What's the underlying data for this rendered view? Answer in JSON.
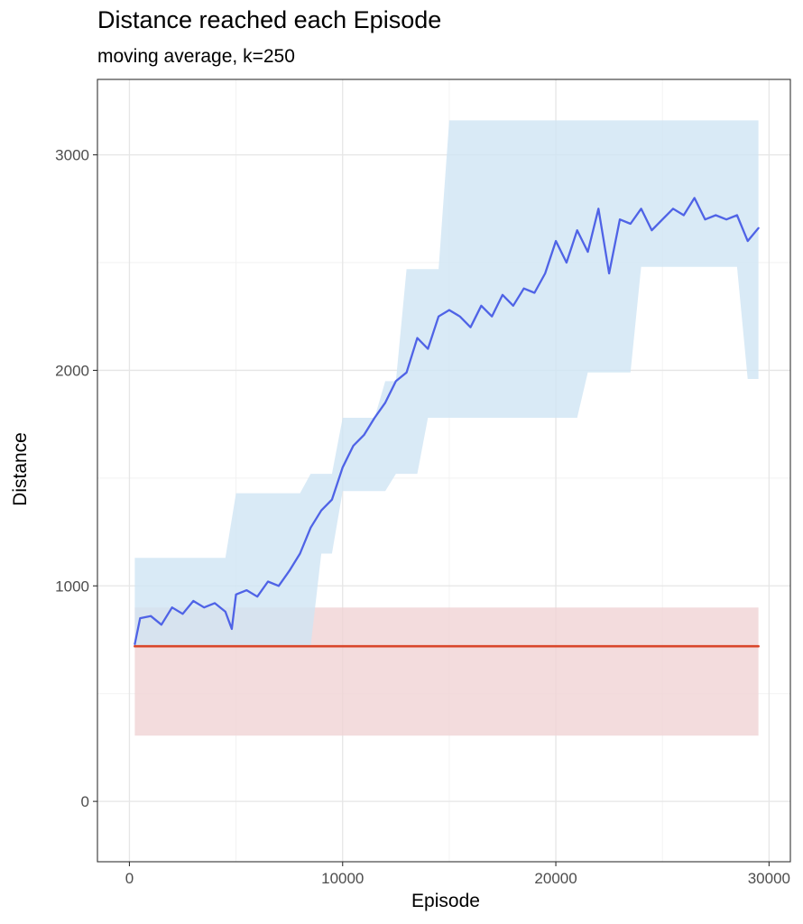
{
  "chart_data": {
    "type": "line",
    "title": "Distance reached each Episode",
    "subtitle": "moving average, k=250",
    "xlabel": "Episode",
    "ylabel": "Distance",
    "xlim": [
      -1500,
      31000
    ],
    "ylim": [
      -280,
      3350
    ],
    "x_ticks": [
      0,
      10000,
      20000,
      30000
    ],
    "x_tick_labels": [
      "0",
      "10000",
      "20000",
      "30000"
    ],
    "y_ticks": [
      0,
      1000,
      2000,
      3000
    ],
    "y_tick_labels": [
      "0",
      "1000",
      "2000",
      "3000"
    ],
    "grid": true,
    "colors": {
      "agent_line": "#4f63e6",
      "agent_band": "#cfe5f4",
      "baseline_line": "#d9472b",
      "baseline_band": "#f0d3d4",
      "panel_border": "#333333",
      "grid_major": "#e6e6e6",
      "grid_minor": "#f2f2f2"
    },
    "series": [
      {
        "role": "agent_moving_average",
        "x": [
          250,
          500,
          1000,
          1500,
          2000,
          2500,
          3000,
          3500,
          4000,
          4500,
          4800,
          5000,
          5500,
          6000,
          6500,
          7000,
          7500,
          8000,
          8500,
          9000,
          9500,
          10000,
          10500,
          11000,
          11500,
          12000,
          12500,
          13000,
          13500,
          14000,
          14500,
          15000,
          15500,
          16000,
          16500,
          17000,
          17500,
          18000,
          18500,
          19000,
          19500,
          20000,
          20500,
          21000,
          21500,
          22000,
          22500,
          23000,
          23500,
          24000,
          24500,
          25000,
          25500,
          26000,
          26500,
          27000,
          27500,
          28000,
          28500,
          29000,
          29500
        ],
        "y": [
          730,
          850,
          860,
          820,
          900,
          870,
          930,
          900,
          920,
          880,
          800,
          960,
          980,
          950,
          1020,
          1000,
          1070,
          1150,
          1270,
          1350,
          1400,
          1550,
          1650,
          1700,
          1780,
          1850,
          1950,
          1990,
          2150,
          2100,
          2250,
          2280,
          2250,
          2200,
          2300,
          2250,
          2350,
          2300,
          2380,
          2360,
          2450,
          2600,
          2500,
          2650,
          2550,
          2750,
          2450,
          2700,
          2680,
          2750,
          2650,
          2700,
          2750,
          2720,
          2800,
          2700,
          2720,
          2700,
          2720,
          2600,
          2660
        ]
      },
      {
        "role": "agent_range_band",
        "x": [
          250,
          500,
          1000,
          1500,
          2000,
          2500,
          3000,
          3500,
          4000,
          4500,
          5000,
          5500,
          6000,
          6500,
          7000,
          7500,
          8000,
          8500,
          9000,
          9500,
          10000,
          10500,
          11000,
          11500,
          12000,
          12500,
          13000,
          13500,
          14000,
          14500,
          15000,
          15500,
          16000,
          16500,
          17000,
          17500,
          18000,
          18500,
          19000,
          19500,
          20000,
          20500,
          21000,
          21500,
          22000,
          22500,
          23000,
          23500,
          24000,
          24500,
          25000,
          25500,
          26000,
          26500,
          27000,
          27500,
          28000,
          28500,
          29000,
          29500
        ],
        "ymin": [
          720,
          720,
          720,
          720,
          720,
          720,
          720,
          720,
          720,
          720,
          720,
          720,
          720,
          720,
          720,
          720,
          720,
          720,
          1150,
          1150,
          1440,
          1440,
          1440,
          1440,
          1440,
          1520,
          1520,
          1520,
          1780,
          1780,
          1780,
          1780,
          1780,
          1780,
          1780,
          1780,
          1780,
          1780,
          1780,
          1780,
          1780,
          1780,
          1780,
          1990,
          1990,
          1990,
          1990,
          1990,
          2480,
          2480,
          2480,
          2480,
          2480,
          2480,
          2480,
          2480,
          2480,
          2480,
          1960,
          1960
        ],
        "ymax": [
          1130,
          1130,
          1130,
          1130,
          1130,
          1130,
          1130,
          1130,
          1130,
          1130,
          1430,
          1430,
          1430,
          1430,
          1430,
          1430,
          1430,
          1520,
          1520,
          1520,
          1780,
          1780,
          1780,
          1780,
          1950,
          1950,
          2470,
          2470,
          2470,
          2470,
          3160,
          3160,
          3160,
          3160,
          3160,
          3160,
          3160,
          3160,
          3160,
          3160,
          3160,
          3160,
          3160,
          3160,
          3160,
          3160,
          3160,
          3160,
          3160,
          3160,
          3160,
          3160,
          3160,
          3160,
          3160,
          3160,
          3160,
          3160,
          3160,
          3160
        ]
      },
      {
        "role": "baseline_moving_average",
        "x": [
          250,
          29500
        ],
        "y": [
          720,
          720
        ]
      },
      {
        "role": "baseline_range_band",
        "x": [
          250,
          29500
        ],
        "ymin": [
          305,
          305
        ],
        "ymax": [
          900,
          900
        ]
      }
    ]
  }
}
